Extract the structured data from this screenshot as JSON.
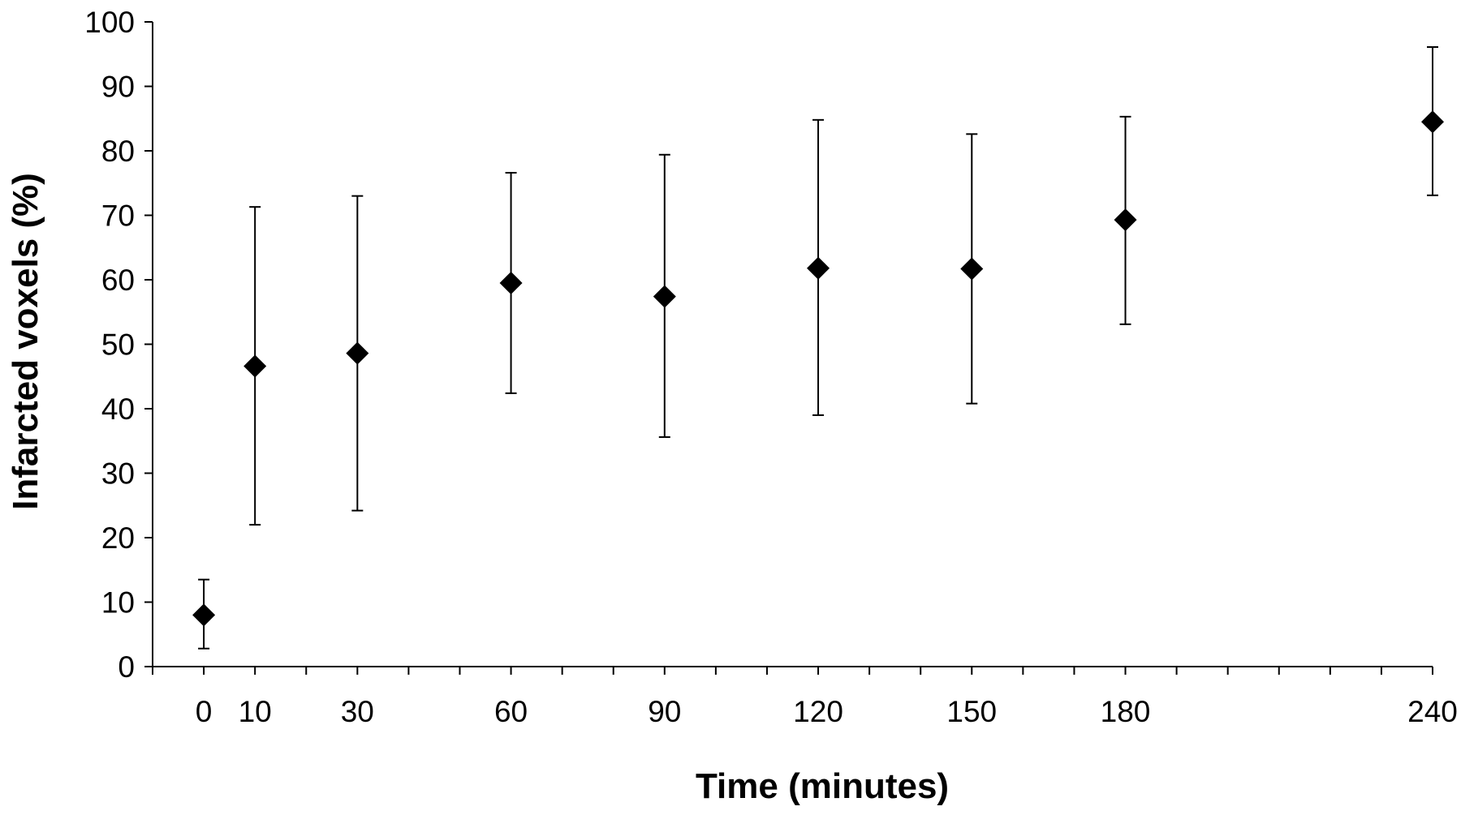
{
  "chart_data": {
    "type": "scatter",
    "title": "",
    "xlabel": "Time (minutes)",
    "ylabel": "Infarcted voxels (%)",
    "xlim": [
      -10,
      240
    ],
    "ylim": [
      0,
      100
    ],
    "yticks": [
      0,
      10,
      20,
      30,
      40,
      50,
      60,
      70,
      80,
      90,
      100
    ],
    "xtick_labels": [
      0,
      10,
      30,
      60,
      90,
      120,
      150,
      180,
      240
    ],
    "x_minor_tick_step": 10,
    "grid": false,
    "marker": "diamond",
    "marker_color": "#000000",
    "points": [
      {
        "x": 0,
        "y": 8,
        "err_low": 2.8,
        "err_high": 13.5
      },
      {
        "x": 10,
        "y": 46.6,
        "err_low": 22,
        "err_high": 71.3
      },
      {
        "x": 30,
        "y": 48.6,
        "err_low": 24.2,
        "err_high": 73
      },
      {
        "x": 60,
        "y": 59.5,
        "err_low": 42.4,
        "err_high": 76.6
      },
      {
        "x": 90,
        "y": 57.4,
        "err_low": 35.6,
        "err_high": 79.4
      },
      {
        "x": 120,
        "y": 61.8,
        "err_low": 39,
        "err_high": 84.8
      },
      {
        "x": 150,
        "y": 61.7,
        "err_low": 40.8,
        "err_high": 82.6
      },
      {
        "x": 180,
        "y": 69.3,
        "err_low": 53.1,
        "err_high": 85.3
      },
      {
        "x": 240,
        "y": 84.5,
        "err_low": 73.1,
        "err_high": 96.1
      }
    ]
  }
}
